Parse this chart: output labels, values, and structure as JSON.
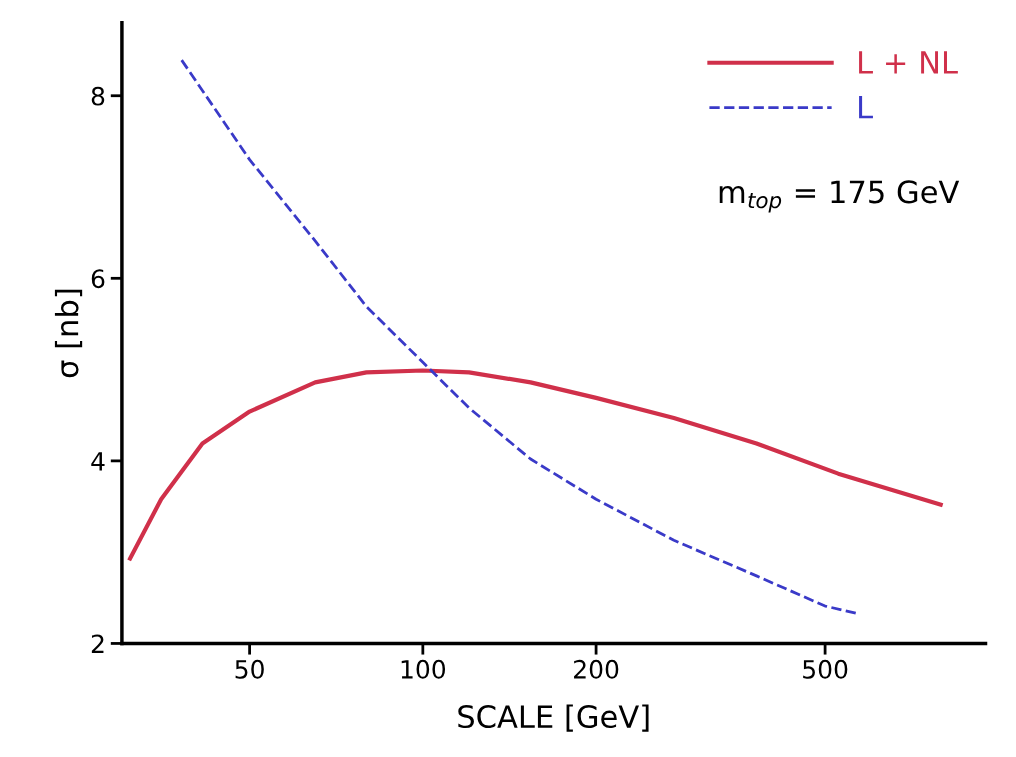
{
  "chart_data": {
    "type": "line",
    "xlabel": "SCALE [GeV]",
    "ylabel": "σ [nb]",
    "log": "x",
    "xlim": [
      30,
      950
    ],
    "xticks": [
      50,
      100,
      200,
      500
    ],
    "ylim": [
      2,
      8.8
    ],
    "yticks": [
      2,
      4,
      6,
      8
    ],
    "grid": false,
    "legend": "top right",
    "marker": "none",
    "annotations": [
      "m$_{top}$ = 175 GeV"
    ],
    "series": [
      {
        "name": "L + NL",
        "color": "#d0304a",
        "line_style": "solid",
        "x": [
          31,
          35.1,
          41.4,
          50,
          65,
          79.8,
          100,
          120.3,
          153.9,
          200,
          273,
          380,
          527,
          794
        ],
        "values": [
          2.93,
          3.58,
          4.19,
          4.54,
          4.86,
          4.97,
          4.99,
          4.97,
          4.86,
          4.69,
          4.47,
          4.19,
          3.86,
          3.52
        ]
      },
      {
        "name": "L",
        "color": "#3a3ac8",
        "line_style": "dashed",
        "x": [
          38.1,
          50,
          65,
          79.8,
          100,
          120.3,
          153.9,
          200,
          273,
          380,
          500,
          567
        ],
        "values": [
          8.39,
          7.3,
          6.41,
          5.69,
          5.08,
          4.58,
          4.02,
          3.58,
          3.13,
          2.74,
          2.41,
          2.33
        ]
      }
    ]
  }
}
